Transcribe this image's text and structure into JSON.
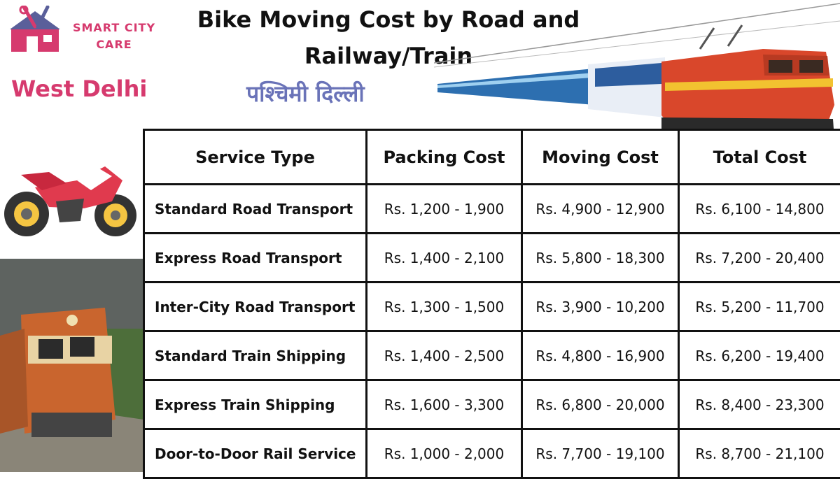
{
  "brand": {
    "line1": "SMART CITY",
    "line2": "CARE",
    "color": "#d63a6e"
  },
  "header": {
    "title": "Bike Moving Cost by Road and Railway/Train",
    "city_en": "West Delhi",
    "city_hi": "पश्चिमी दिल्ली"
  },
  "table": {
    "headers": [
      "Service Type",
      "Packing Cost",
      "Moving Cost",
      "Total Cost"
    ],
    "rows": [
      [
        "Standard Road Transport",
        "Rs. 1,200 - 1,900",
        "Rs. 4,900 - 12,900",
        "Rs. 6,100 - 14,800"
      ],
      [
        "Express Road Transport",
        "Rs. 1,400 - 2,100",
        "Rs. 5,800 - 18,300",
        "Rs. 7,200 - 20,400"
      ],
      [
        "Inter-City Road Transport",
        "Rs. 1,300 - 1,500",
        "Rs. 3,900 - 10,200",
        "Rs. 5,200 - 11,700"
      ],
      [
        "Standard Train Shipping",
        "Rs. 1,400 - 2,500",
        "Rs. 4,800 - 16,900",
        "Rs. 6,200 - 19,400"
      ],
      [
        "Express Train Shipping",
        "Rs. 1,600 - 3,300",
        "Rs. 6,800 - 20,000",
        "Rs. 8,400 - 23,300"
      ],
      [
        "Door-to-Door Rail Service",
        "Rs. 1,000 - 2,000",
        "Rs. 7,700 - 19,100",
        "Rs. 8,700 - 21,100"
      ]
    ]
  },
  "images": {
    "logo": "house-tools-logo-icon",
    "train_top": "passenger-train-icon",
    "bike": "sports-motorbike-icon",
    "locomotive": "diesel-locomotive-icon"
  }
}
